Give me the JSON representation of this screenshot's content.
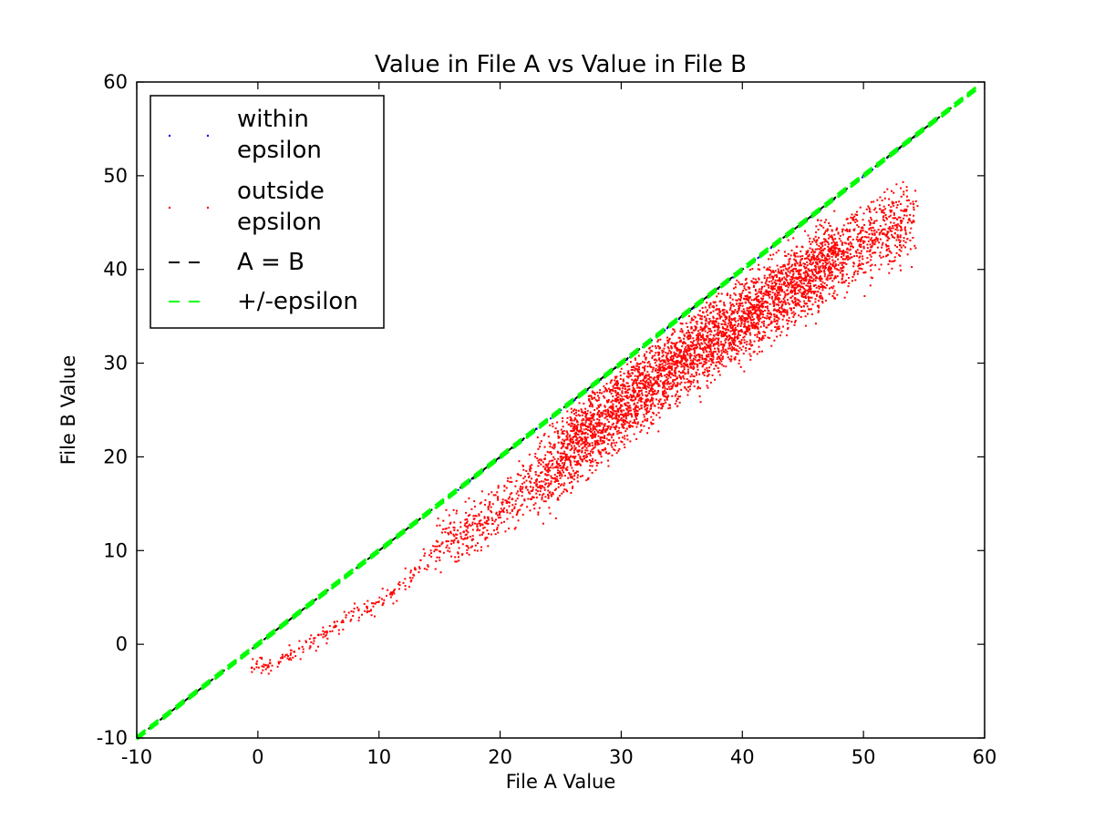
{
  "chart_data": {
    "type": "scatter",
    "title": "Value in File A vs Value in File B",
    "xlabel": "File A Value",
    "ylabel": "File B Value",
    "xlim": [
      -10,
      60
    ],
    "ylim": [
      -10,
      60
    ],
    "xticks": [
      "-10",
      "0",
      "10",
      "20",
      "30",
      "40",
      "50",
      "60"
    ],
    "yticks": [
      "-10",
      "0",
      "10",
      "20",
      "30",
      "40",
      "50",
      "60"
    ],
    "grid": false,
    "legend_position": "top-left",
    "series": [
      {
        "name": "within\nepsilon",
        "kind": "points",
        "color": "#0000ff",
        "x": [
          14.2,
          17.5,
          19.5,
          21.0,
          23.0,
          25.0,
          27.0,
          29.5,
          32.0,
          35.0,
          38.0,
          41.0,
          44.0,
          47.0,
          50.0,
          53.0,
          56.0
        ],
        "y": [
          14.2,
          17.5,
          19.5,
          21.0,
          23.0,
          25.0,
          27.0,
          29.5,
          32.0,
          35.0,
          38.0,
          41.0,
          44.0,
          47.0,
          50.0,
          53.0,
          56.0
        ]
      },
      {
        "name": "outside\nepsilon",
        "kind": "points",
        "color": "#ff0000",
        "x": [
          -0.5,
          1.0,
          3.0,
          5.0,
          7.0,
          9.0,
          11.0,
          13.0,
          15.0,
          17.0,
          19.0,
          21.0,
          23.0,
          24.0,
          25.0,
          26.0,
          27.0,
          28.0,
          29.0,
          30.0,
          31.0,
          32.0,
          33.0,
          34.0,
          35.0,
          36.0,
          37.0,
          38.0,
          39.0,
          40.0,
          41.0,
          42.0,
          43.0,
          44.0,
          45.0,
          46.0,
          47.0,
          48.0,
          50.0,
          52.0,
          54.0
        ],
        "y": [
          -2.5,
          -2.0,
          -0.8,
          1.0,
          2.5,
          4.0,
          5.5,
          8.0,
          10.5,
          12.0,
          13.5,
          15.5,
          17.5,
          18.8,
          20.0,
          21.5,
          22.5,
          23.5,
          24.5,
          25.5,
          26.5,
          27.5,
          28.5,
          29.5,
          30.5,
          31.5,
          32.5,
          33.0,
          34.0,
          35.0,
          36.0,
          36.5,
          37.5,
          38.5,
          39.0,
          40.0,
          41.0,
          42.0,
          43.0,
          44.0,
          45.0
        ]
      },
      {
        "name": "A = B",
        "kind": "line",
        "color": "#000000",
        "dash": true,
        "x": [
          -10,
          59
        ],
        "y": [
          -10,
          59
        ]
      },
      {
        "name": "+/-epsilon",
        "kind": "line",
        "color": "#00ff00",
        "dash": true,
        "x": [
          -10,
          59.5
        ],
        "y": [
          -10,
          59.5
        ]
      }
    ]
  }
}
